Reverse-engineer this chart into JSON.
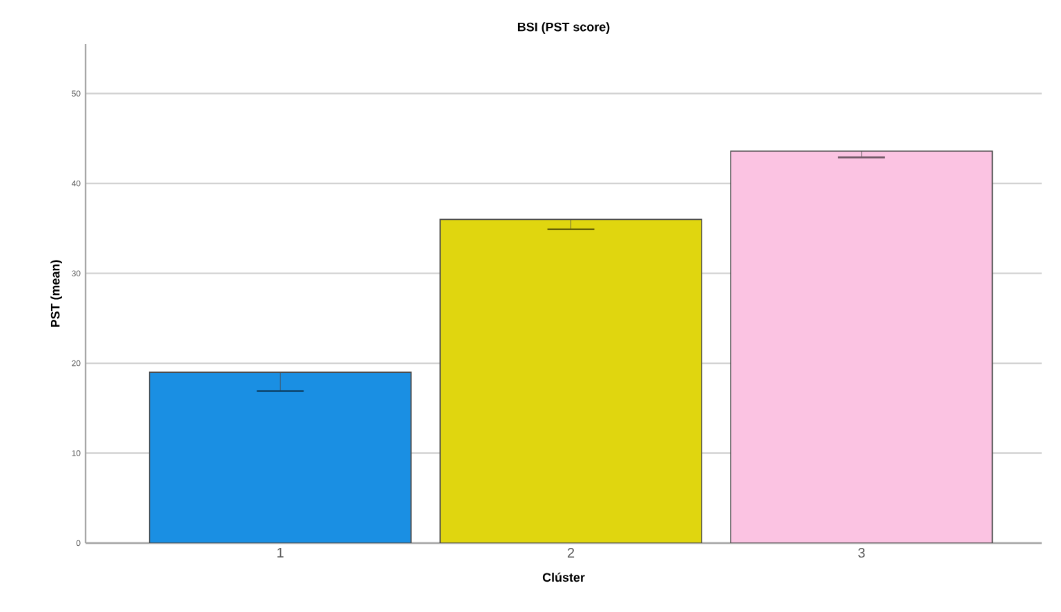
{
  "chart_data": {
    "type": "bar",
    "title": "BSI (PST score)",
    "xlabel": "Clúster",
    "ylabel": "PST (mean)",
    "categories": [
      "1",
      "2",
      "3"
    ],
    "values": [
      19.0,
      36.0,
      43.6
    ],
    "colors": [
      "#1a8fe3",
      "#e0d60f",
      "#fbc3e2"
    ],
    "errors": [
      [
        16.9,
        16.9
      ],
      [
        34.9,
        34.9
      ],
      [
        42.9,
        42.9
      ]
    ],
    "ylim": [
      0,
      55.5
    ],
    "yticks": [
      0,
      10,
      20,
      30,
      40,
      50
    ],
    "grid": "y"
  }
}
